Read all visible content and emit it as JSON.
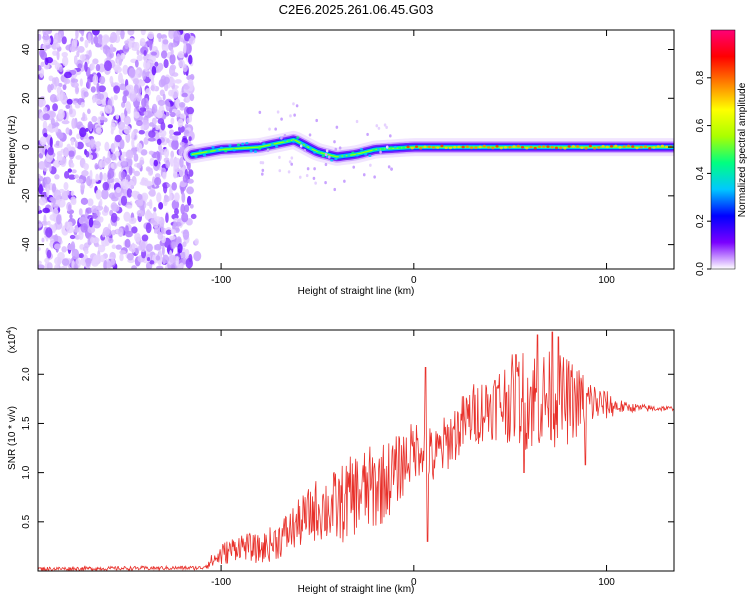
{
  "chart_data": [
    {
      "type": "heatmap",
      "title": "C2E6.2025.261.06.45.G03",
      "xlabel": "Height of straight line (km)",
      "ylabel": "Frequency (Hz)",
      "xlim": [
        -195,
        135
      ],
      "ylim": [
        -50,
        48
      ],
      "x_ticks": [
        -100,
        0,
        100
      ],
      "x_tick_labels": [
        "-100",
        "0",
        "100"
      ],
      "y_ticks": [
        -40,
        -20,
        0,
        20,
        40
      ],
      "y_tick_labels": [
        "-40",
        "-20",
        "0",
        "20",
        "40"
      ],
      "noise_region_x": [
        -195,
        -115
      ],
      "signal_region_x": [
        -115,
        135
      ],
      "signal_center_freq": [
        {
          "x": -115,
          "y": -3
        },
        {
          "x": -100,
          "y": -1
        },
        {
          "x": -80,
          "y": 0
        },
        {
          "x": -62,
          "y": 3
        },
        {
          "x": -50,
          "y": -2
        },
        {
          "x": -40,
          "y": -4
        },
        {
          "x": -30,
          "y": -3
        },
        {
          "x": -20,
          "y": -1
        },
        {
          "x": 0,
          "y": 0
        },
        {
          "x": 50,
          "y": 0
        },
        {
          "x": 100,
          "y": 0
        },
        {
          "x": 135,
          "y": 0
        }
      ],
      "colorbar": {
        "label": "Normalized spectral amplitude",
        "ticks": [
          0.0,
          0.2,
          0.4,
          0.6,
          0.8
        ],
        "tick_labels": [
          "0.0",
          "0.2",
          "0.4",
          "0.6",
          "0.8"
        ],
        "range": [
          0,
          1
        ],
        "colors": [
          "#ffffff",
          "#7a00ff",
          "#0000ff",
          "#00c8ff",
          "#00ff80",
          "#aaff00",
          "#ffff00",
          "#ff8000",
          "#ff0000",
          "#ff0077"
        ]
      }
    },
    {
      "type": "line",
      "xlabel": "Height of straight line (km)",
      "ylabel": "SNR (10 * v/v)",
      "multiplier_label": "(x10",
      "multiplier_exponent": "4",
      "multiplier_close": ")",
      "xlim": [
        -195,
        135
      ],
      "ylim": [
        0,
        2.45
      ],
      "x_ticks": [
        -100,
        0,
        100
      ],
      "x_tick_labels": [
        "-100",
        "0",
        "100"
      ],
      "y_ticks": [
        0.5,
        1.0,
        1.5,
        2.0
      ],
      "y_tick_labels": [
        "0.5",
        "1.0",
        "1.5",
        "2.0"
      ],
      "series": [
        {
          "name": "SNR",
          "color": "#e8302a",
          "envelope": [
            {
              "x": -195,
              "y": 0.02
            },
            {
              "x": -110,
              "y": 0.03
            },
            {
              "x": -100,
              "y": 0.15
            },
            {
              "x": -90,
              "y": 0.25
            },
            {
              "x": -80,
              "y": 0.2
            },
            {
              "x": -70,
              "y": 0.3
            },
            {
              "x": -60,
              "y": 0.45
            },
            {
              "x": -50,
              "y": 0.6
            },
            {
              "x": -40,
              "y": 0.6
            },
            {
              "x": -30,
              "y": 0.75
            },
            {
              "x": -20,
              "y": 0.8
            },
            {
              "x": -10,
              "y": 0.95
            },
            {
              "x": 0,
              "y": 1.2
            },
            {
              "x": 5,
              "y": 1.25
            },
            {
              "x": 10,
              "y": 1.1
            },
            {
              "x": 20,
              "y": 1.35
            },
            {
              "x": 30,
              "y": 1.55
            },
            {
              "x": 40,
              "y": 1.65
            },
            {
              "x": 50,
              "y": 1.7
            },
            {
              "x": 60,
              "y": 1.7
            },
            {
              "x": 70,
              "y": 1.7
            },
            {
              "x": 80,
              "y": 1.68
            },
            {
              "x": 90,
              "y": 1.7
            },
            {
              "x": 100,
              "y": 1.67
            },
            {
              "x": 110,
              "y": 1.66
            },
            {
              "x": 120,
              "y": 1.65
            },
            {
              "x": 135,
              "y": 1.65
            }
          ],
          "spike_amplitude": [
            {
              "x": -195,
              "a": 0.02
            },
            {
              "x": -110,
              "a": 0.02
            },
            {
              "x": -100,
              "a": 0.12
            },
            {
              "x": -80,
              "a": 0.15
            },
            {
              "x": -60,
              "a": 0.25
            },
            {
              "x": -40,
              "a": 0.4
            },
            {
              "x": -20,
              "a": 0.45
            },
            {
              "x": 0,
              "a": 0.3
            },
            {
              "x": 20,
              "a": 0.3
            },
            {
              "x": 40,
              "a": 0.35
            },
            {
              "x": 60,
              "a": 0.55
            },
            {
              "x": 80,
              "a": 0.45
            },
            {
              "x": 95,
              "a": 0.2
            },
            {
              "x": 110,
              "a": 0.05
            },
            {
              "x": 135,
              "a": 0.02
            }
          ],
          "notable_points": [
            {
              "x": 6,
              "y": 2.07
            },
            {
              "x": 7,
              "y": 0.3
            },
            {
              "x": 64,
              "y": 2.4
            },
            {
              "x": 72,
              "y": 2.43
            },
            {
              "x": 75,
              "y": 2.38
            },
            {
              "x": 53,
              "y": 2.2
            },
            {
              "x": 57,
              "y": 1.0
            },
            {
              "x": 89,
              "y": 1.08
            }
          ]
        }
      ]
    }
  ]
}
